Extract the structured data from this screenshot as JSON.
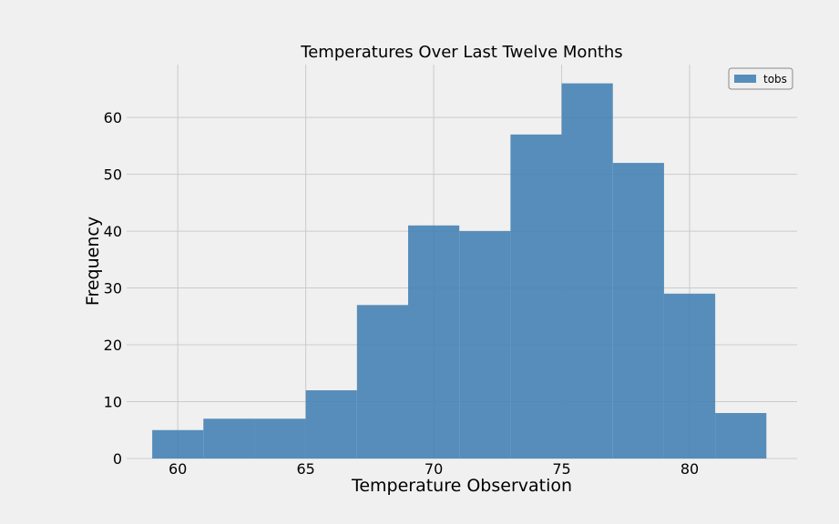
{
  "chart_data": {
    "type": "bar",
    "title": "Temperatures Over Last Twelve Months",
    "xlabel": "Temperature Observation",
    "ylabel": "Frequency",
    "bin_edges": [
      59,
      61,
      63,
      65,
      67,
      69,
      71,
      73,
      75,
      77,
      79,
      81,
      83
    ],
    "series": [
      {
        "name": "tobs",
        "values": [
          5,
          7,
          7,
          12,
          27,
          41,
          40,
          57,
          66,
          52,
          29,
          8
        ]
      }
    ],
    "xlim": [
      58.0,
      84.2
    ],
    "ylim": [
      0,
      69.3
    ],
    "xticks": [
      60,
      65,
      70,
      75,
      80
    ],
    "yticks": [
      0,
      10,
      20,
      30,
      40,
      50,
      60
    ],
    "grid": true,
    "legend_position": "top-right",
    "bar_color": "#4682b4"
  }
}
